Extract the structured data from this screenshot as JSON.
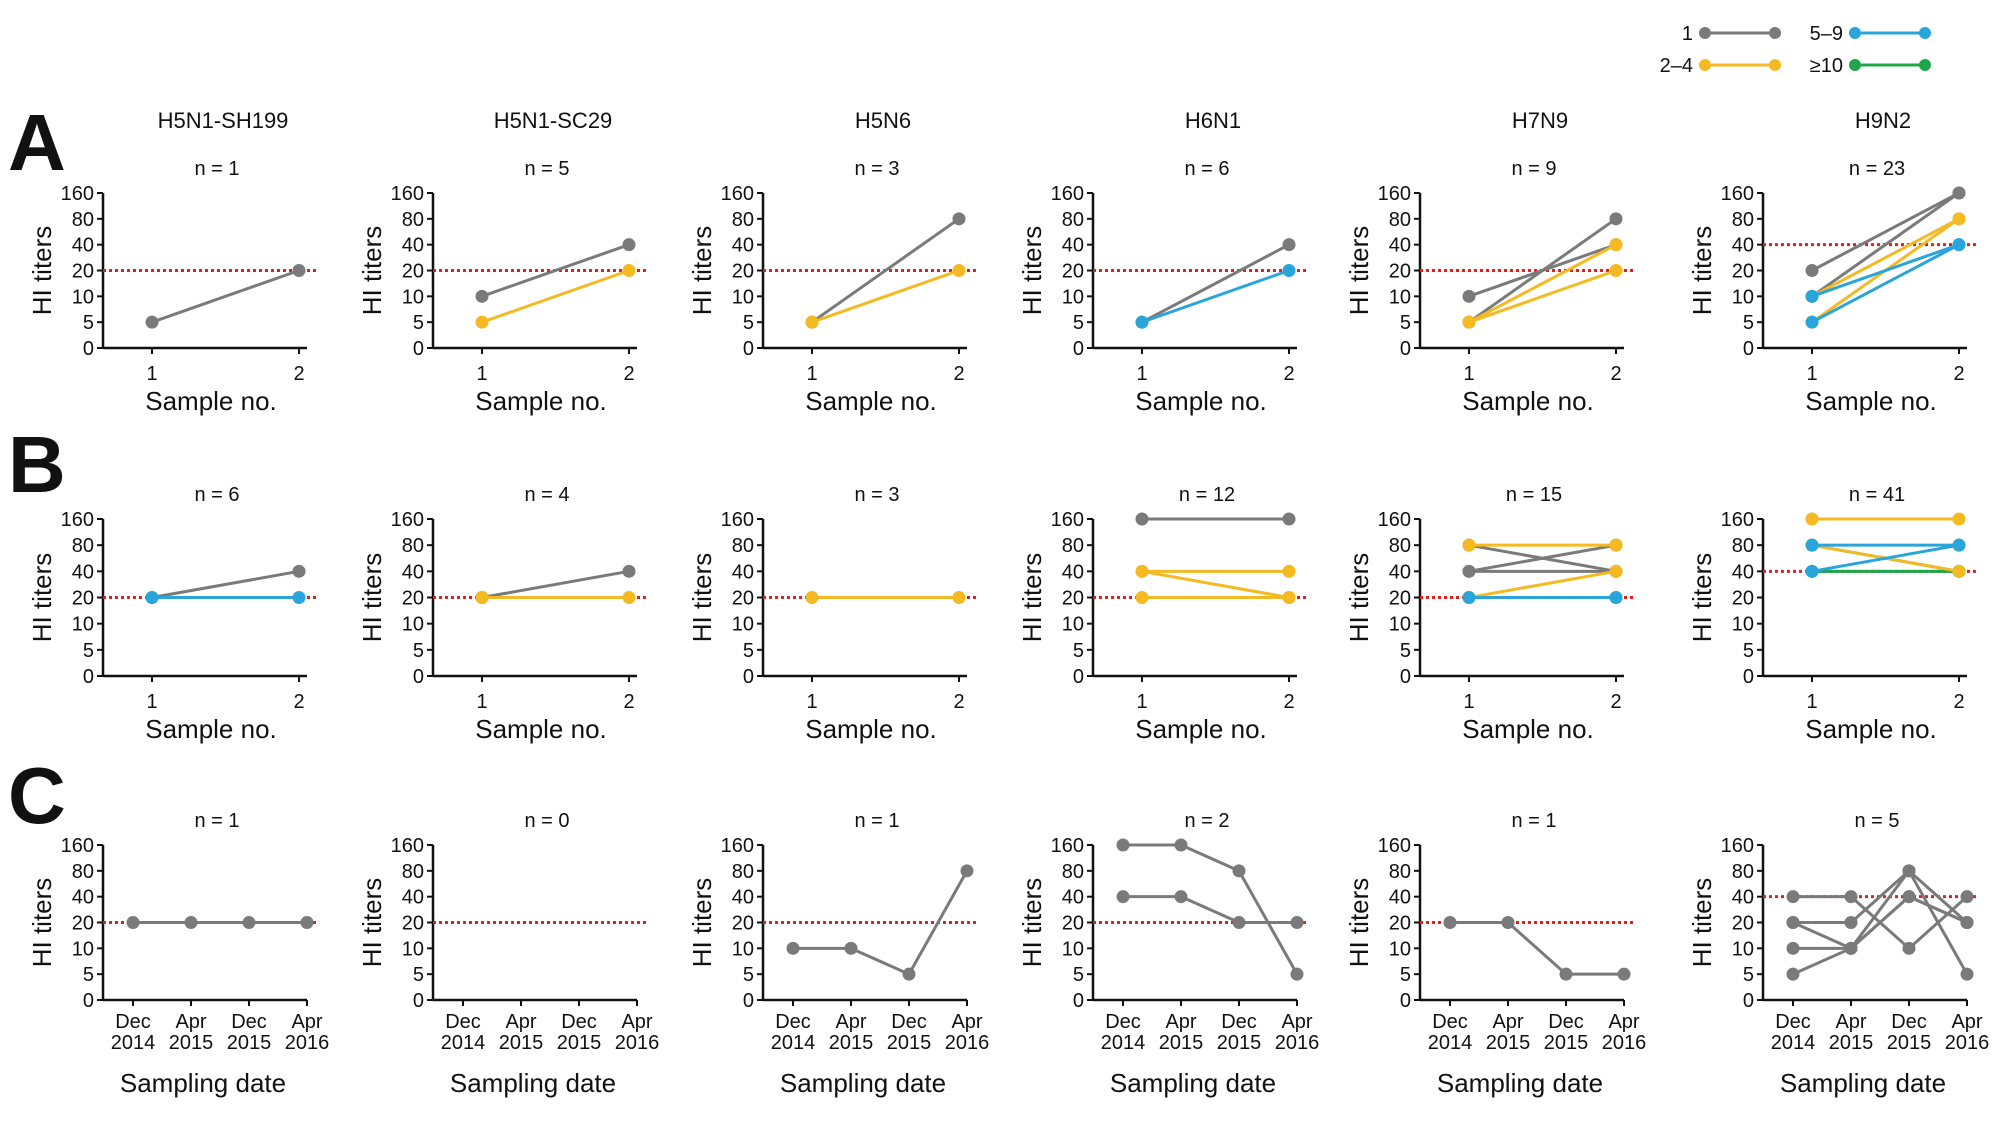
{
  "figure": {
    "legend": [
      {
        "label": "1",
        "color": "#7a7a7a"
      },
      {
        "label": "2–4",
        "color": "#f5b922"
      },
      {
        "label": "5–9",
        "color": "#2aa5dc"
      },
      {
        "label": "≥10",
        "color": "#1fa54a"
      }
    ],
    "colors": {
      "gray": "#7a7a7a",
      "yellow": "#f5b922",
      "blue": "#2aa5dc",
      "green": "#1fa54a",
      "threshold": "#e02020"
    },
    "row_labels": [
      "A",
      "B",
      "C"
    ],
    "column_titles": [
      "H5N1-SH199",
      "H5N1-SC29",
      "H5N6",
      "H6N1",
      "H7N9",
      "H9N2"
    ]
  },
  "chart_data": [
    {
      "type": "line",
      "row": "A",
      "column": "H5N1-SH199",
      "n_label": "n = 1",
      "ylabel": "HI titers",
      "xlabel": "Sample no.",
      "x": [
        "1",
        "2"
      ],
      "yticks": [
        0,
        5,
        10,
        20,
        40,
        80,
        160
      ],
      "threshold": 20,
      "series": [
        {
          "group": "1",
          "values": [
            5,
            20
          ]
        }
      ]
    },
    {
      "type": "line",
      "row": "A",
      "column": "H5N1-SC29",
      "n_label": "n = 5",
      "ylabel": "HI titers",
      "xlabel": "Sample no.",
      "x": [
        "1",
        "2"
      ],
      "yticks": [
        0,
        5,
        10,
        20,
        40,
        80,
        160
      ],
      "threshold": 20,
      "series": [
        {
          "group": "1",
          "values": [
            10,
            40
          ]
        },
        {
          "group": "2–4",
          "values": [
            5,
            20
          ]
        }
      ]
    },
    {
      "type": "line",
      "row": "A",
      "column": "H5N6",
      "n_label": "n = 3",
      "ylabel": "HI titers",
      "xlabel": "Sample no.",
      "x": [
        "1",
        "2"
      ],
      "yticks": [
        0,
        5,
        10,
        20,
        40,
        80,
        160
      ],
      "threshold": 20,
      "series": [
        {
          "group": "1",
          "values": [
            5,
            80
          ]
        },
        {
          "group": "2–4",
          "values": [
            5,
            20
          ]
        }
      ]
    },
    {
      "type": "line",
      "row": "A",
      "column": "H6N1",
      "n_label": "n = 6",
      "ylabel": "HI titers",
      "xlabel": "Sample no.",
      "x": [
        "1",
        "2"
      ],
      "yticks": [
        0,
        5,
        10,
        20,
        40,
        80,
        160
      ],
      "threshold": 20,
      "series": [
        {
          "group": "1",
          "values": [
            5,
            40
          ]
        },
        {
          "group": "5–9",
          "values": [
            5,
            20
          ]
        }
      ]
    },
    {
      "type": "line",
      "row": "A",
      "column": "H7N9",
      "n_label": "n = 9",
      "ylabel": "HI titers",
      "xlabel": "Sample no.",
      "x": [
        "1",
        "2"
      ],
      "yticks": [
        0,
        5,
        10,
        20,
        40,
        80,
        160
      ],
      "threshold": 20,
      "series": [
        {
          "group": "1",
          "values": [
            10,
            40
          ]
        },
        {
          "group": "1",
          "values": [
            5,
            80
          ]
        },
        {
          "group": "2–4",
          "values": [
            5,
            40
          ]
        },
        {
          "group": "2–4",
          "values": [
            5,
            20
          ]
        }
      ]
    },
    {
      "type": "line",
      "row": "A",
      "column": "H9N2",
      "n_label": "n = 23",
      "ylabel": "HI titers",
      "xlabel": "Sample no.",
      "x": [
        "1",
        "2"
      ],
      "yticks": [
        0,
        5,
        10,
        20,
        40,
        80,
        160
      ],
      "threshold": 40,
      "series": [
        {
          "group": "1",
          "values": [
            20,
            160
          ]
        },
        {
          "group": "1",
          "values": [
            10,
            160
          ]
        },
        {
          "group": "2–4",
          "values": [
            10,
            80
          ]
        },
        {
          "group": "2–4",
          "values": [
            5,
            80
          ]
        },
        {
          "group": "5–9",
          "values": [
            10,
            40
          ]
        },
        {
          "group": "5–9",
          "values": [
            5,
            40
          ]
        }
      ]
    },
    {
      "type": "line",
      "row": "B",
      "column": "H5N1-SH199",
      "n_label": "n = 6",
      "ylabel": "HI titers",
      "xlabel": "Sample no.",
      "x": [
        "1",
        "2"
      ],
      "yticks": [
        0,
        5,
        10,
        20,
        40,
        80,
        160
      ],
      "threshold": 20,
      "series": [
        {
          "group": "1",
          "values": [
            20,
            40
          ]
        },
        {
          "group": "5–9",
          "values": [
            20,
            20
          ]
        }
      ]
    },
    {
      "type": "line",
      "row": "B",
      "column": "H5N1-SC29",
      "n_label": "n = 4",
      "ylabel": "HI titers",
      "xlabel": "Sample no.",
      "x": [
        "1",
        "2"
      ],
      "yticks": [
        0,
        5,
        10,
        20,
        40,
        80,
        160
      ],
      "threshold": 20,
      "series": [
        {
          "group": "1",
          "values": [
            20,
            40
          ]
        },
        {
          "group": "2–4",
          "values": [
            20,
            20
          ]
        }
      ]
    },
    {
      "type": "line",
      "row": "B",
      "column": "H5N6",
      "n_label": "n = 3",
      "ylabel": "HI titers",
      "xlabel": "Sample no.",
      "x": [
        "1",
        "2"
      ],
      "yticks": [
        0,
        5,
        10,
        20,
        40,
        80,
        160
      ],
      "threshold": 20,
      "series": [
        {
          "group": "2–4",
          "values": [
            20,
            20
          ]
        }
      ]
    },
    {
      "type": "line",
      "row": "B",
      "column": "H6N1",
      "n_label": "n = 12",
      "ylabel": "HI titers",
      "xlabel": "Sample no.",
      "x": [
        "1",
        "2"
      ],
      "yticks": [
        0,
        5,
        10,
        20,
        40,
        80,
        160
      ],
      "threshold": 20,
      "series": [
        {
          "group": "1",
          "values": [
            160,
            160
          ]
        },
        {
          "group": "2–4",
          "values": [
            40,
            40
          ]
        },
        {
          "group": "2–4",
          "values": [
            40,
            20
          ]
        },
        {
          "group": "2–4",
          "values": [
            20,
            20
          ]
        }
      ]
    },
    {
      "type": "line",
      "row": "B",
      "column": "H7N9",
      "n_label": "n = 15",
      "ylabel": "HI titers",
      "xlabel": "Sample no.",
      "x": [
        "1",
        "2"
      ],
      "yticks": [
        0,
        5,
        10,
        20,
        40,
        80,
        160
      ],
      "threshold": 20,
      "series": [
        {
          "group": "1",
          "values": [
            40,
            80
          ]
        },
        {
          "group": "1",
          "values": [
            80,
            40
          ]
        },
        {
          "group": "1",
          "values": [
            40,
            40
          ]
        },
        {
          "group": "2–4",
          "values": [
            80,
            80
          ]
        },
        {
          "group": "2–4",
          "values": [
            20,
            40
          ]
        },
        {
          "group": "2–4",
          "values": [
            20,
            20
          ]
        },
        {
          "group": "5–9",
          "values": [
            20,
            20
          ]
        }
      ]
    },
    {
      "type": "line",
      "row": "B",
      "column": "H9N2",
      "n_label": "n = 41",
      "ylabel": "HI titers",
      "xlabel": "Sample no.",
      "x": [
        "1",
        "2"
      ],
      "yticks": [
        0,
        5,
        10,
        20,
        40,
        80,
        160
      ],
      "threshold": 40,
      "series": [
        {
          "group": "≥10",
          "values": [
            80,
            40
          ]
        },
        {
          "group": "≥10",
          "values": [
            40,
            40
          ]
        },
        {
          "group": "2–4",
          "values": [
            160,
            160
          ]
        },
        {
          "group": "2–4",
          "values": [
            80,
            40
          ]
        },
        {
          "group": "5–9",
          "values": [
            80,
            80
          ]
        },
        {
          "group": "5–9",
          "values": [
            40,
            80
          ]
        }
      ]
    },
    {
      "type": "line",
      "row": "C",
      "column": "H5N1-SH199",
      "n_label": "n = 1",
      "ylabel": "HI titers",
      "xlabel": "Sampling date",
      "x": [
        "Dec 2014",
        "Apr 2015",
        "Dec 2015",
        "Apr 2016"
      ],
      "yticks": [
        0,
        5,
        10,
        20,
        40,
        80,
        160
      ],
      "threshold": 20,
      "series": [
        {
          "group": "1",
          "values": [
            20,
            20,
            20,
            20
          ]
        }
      ]
    },
    {
      "type": "line",
      "row": "C",
      "column": "H5N1-SC29",
      "n_label": "n = 0",
      "ylabel": "HI titers",
      "xlabel": "Sampling date",
      "x": [
        "Dec 2014",
        "Apr 2015",
        "Dec 2015",
        "Apr 2016"
      ],
      "yticks": [
        0,
        5,
        10,
        20,
        40,
        80,
        160
      ],
      "threshold": 20,
      "series": []
    },
    {
      "type": "line",
      "row": "C",
      "column": "H5N6",
      "n_label": "n = 1",
      "ylabel": "HI titers",
      "xlabel": "Sampling date",
      "x": [
        "Dec 2014",
        "Apr 2015",
        "Dec 2015",
        "Apr 2016"
      ],
      "yticks": [
        0,
        5,
        10,
        20,
        40,
        80,
        160
      ],
      "threshold": 20,
      "series": [
        {
          "group": "1",
          "values": [
            10,
            10,
            5,
            80
          ]
        }
      ]
    },
    {
      "type": "line",
      "row": "C",
      "column": "H6N1",
      "n_label": "n = 2",
      "ylabel": "HI titers",
      "xlabel": "Sampling date",
      "x": [
        "Dec 2014",
        "Apr 2015",
        "Dec 2015",
        "Apr 2016"
      ],
      "yticks": [
        0,
        5,
        10,
        20,
        40,
        80,
        160
      ],
      "threshold": 20,
      "series": [
        {
          "group": "1",
          "values": [
            160,
            160,
            80,
            5
          ]
        },
        {
          "group": "1",
          "values": [
            40,
            40,
            20,
            20
          ]
        }
      ]
    },
    {
      "type": "line",
      "row": "C",
      "column": "H7N9",
      "n_label": "n = 1",
      "ylabel": "HI titers",
      "xlabel": "Sampling date",
      "x": [
        "Dec 2014",
        "Apr 2015",
        "Dec 2015",
        "Apr 2016"
      ],
      "yticks": [
        0,
        5,
        10,
        20,
        40,
        80,
        160
      ],
      "threshold": 20,
      "series": [
        {
          "group": "1",
          "values": [
            20,
            20,
            5,
            5
          ]
        }
      ]
    },
    {
      "type": "line",
      "row": "C",
      "column": "H9N2",
      "n_label": "n = 5",
      "ylabel": "HI titers",
      "xlabel": "Sampling date",
      "x": [
        "Dec 2014",
        "Apr 2015",
        "Dec 2015",
        "Apr 2016"
      ],
      "yticks": [
        0,
        5,
        10,
        20,
        40,
        80,
        160
      ],
      "threshold": 40,
      "series": [
        {
          "group": "1",
          "values": [
            40,
            40,
            10,
            40
          ]
        },
        {
          "group": "1",
          "values": [
            20,
            20,
            80,
            20
          ]
        },
        {
          "group": "1",
          "values": [
            10,
            10,
            40,
            20
          ]
        },
        {
          "group": "1",
          "values": [
            5,
            10,
            80,
            5
          ]
        },
        {
          "group": "1",
          "values": [
            20,
            10,
            40,
            20
          ]
        }
      ]
    }
  ]
}
